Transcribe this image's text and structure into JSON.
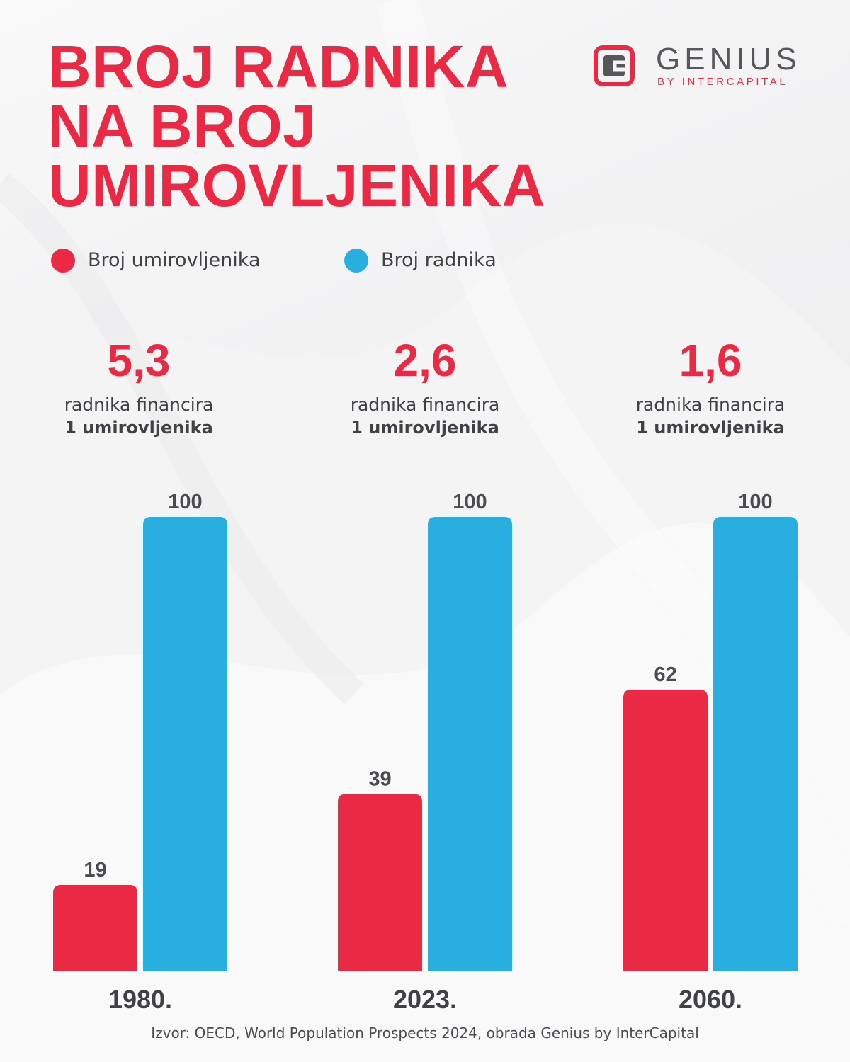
{
  "title": {
    "lines": [
      "BROJ RADNIKA",
      "NA BROJ",
      "UMIROVLJENIKA"
    ]
  },
  "logo": {
    "wordmark": "GENIUS",
    "subtitle": "BY INTERCAPITAL"
  },
  "legend": [
    {
      "label": "Broj umirovljenika",
      "color": "#ea2a45"
    },
    {
      "label": "Broj radnika",
      "color": "#29aee0"
    }
  ],
  "ratios": [
    {
      "value": "5,3",
      "line1": "radnika financira",
      "line2": "1 umirovljenika"
    },
    {
      "value": "2,6",
      "line1": "radnika financira",
      "line2": "1 umirovljenika"
    },
    {
      "value": "1,6",
      "line1": "radnika financira",
      "line2": "1 umirovljenika"
    }
  ],
  "chart_data": {
    "type": "bar",
    "categories": [
      "1980.",
      "2023.",
      "2060."
    ],
    "series": [
      {
        "name": "Broj umirovljenika",
        "values": [
          19,
          39,
          62
        ],
        "color": "#ea2a45"
      },
      {
        "name": "Broj radnika",
        "values": [
          100,
          100,
          100
        ],
        "color": "#29aee0"
      }
    ],
    "ylim": [
      0,
      100
    ],
    "xlabel": "",
    "ylabel": "",
    "grid": false,
    "legend": "top-left"
  },
  "source": "Izvor: OECD, World Population Prospects 2024, obrada Genius by InterCapital"
}
